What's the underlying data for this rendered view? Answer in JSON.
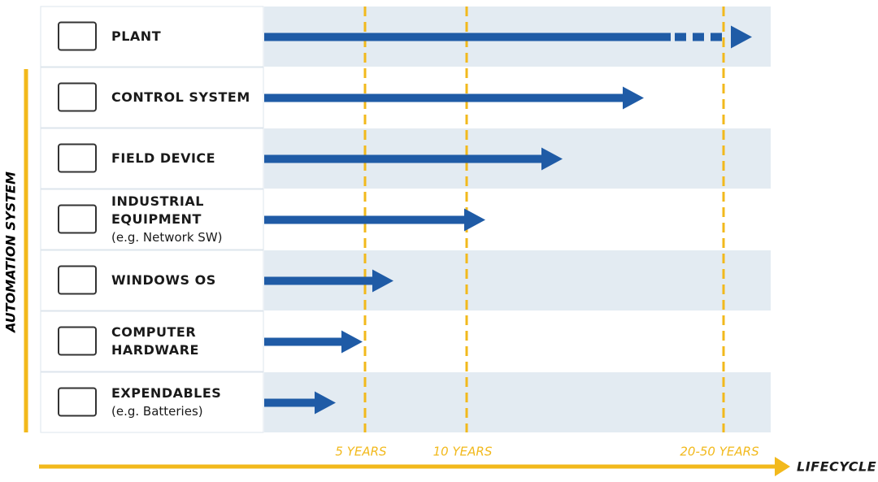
{
  "vertical_label": "AUTOMATION SYSTEM",
  "rows": [
    {
      "lines": [
        "PLANT"
      ]
    },
    {
      "lines": [
        "CONTROL SYSTEM"
      ]
    },
    {
      "lines": [
        "FIELD DEVICE"
      ]
    },
    {
      "lines": [
        "INDUSTRIAL",
        "EQUIPMENT"
      ],
      "note": "(e.g. Network SW)"
    },
    {
      "lines": [
        "WINDOWS OS"
      ]
    },
    {
      "lines": [
        "COMPUTER",
        "HARDWARE"
      ]
    },
    {
      "lines": [
        "EXPENDABLES"
      ],
      "note": "(e.g. Batteries)"
    }
  ],
  "markers": [
    "5 YEARS",
    "10 YEARS",
    "20-50 YEARS"
  ],
  "axis_label": "LIFECYCLE"
}
